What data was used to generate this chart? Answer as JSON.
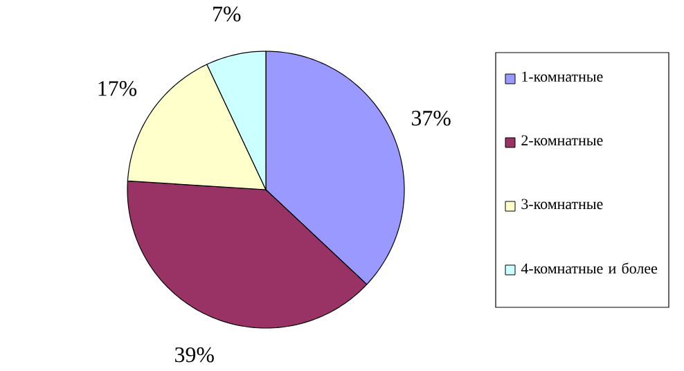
{
  "chart_data": {
    "type": "pie",
    "categories": [
      "1-комнатные",
      "2-комнатные",
      "3-комнатные",
      "4-комнатные и более"
    ],
    "values": [
      37,
      39,
      17,
      7
    ],
    "colors": [
      "#9999ff",
      "#993366",
      "#ffffcc",
      "#ccffff"
    ],
    "value_labels": [
      "37%",
      "39%",
      "17%",
      "7%"
    ],
    "legend": "right"
  }
}
